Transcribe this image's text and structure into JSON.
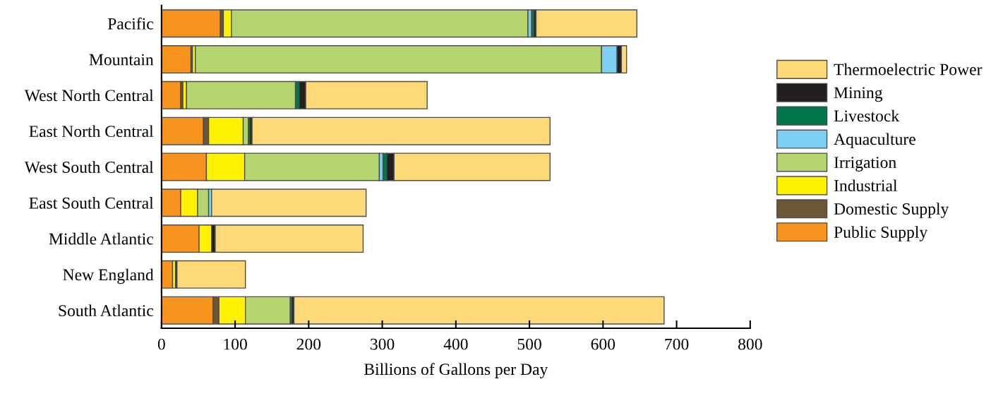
{
  "chart_data": {
    "type": "bar",
    "orientation": "horizontal",
    "stacked": true,
    "xlabel": "Billions of Gallons per Day",
    "categories": [
      "Pacific",
      "Mountain",
      "West North Central",
      "East North Central",
      "West South Central",
      "East South Central",
      "Middle Atlantic",
      "New England",
      "South Atlantic"
    ],
    "series": [
      {
        "name": "Public Supply",
        "color": "#f7941d",
        "values": [
          80,
          40,
          26,
          57,
          61,
          26,
          51,
          15,
          70
        ]
      },
      {
        "name": "Domestic Supply",
        "color": "#6b5636",
        "values": [
          4,
          2,
          3,
          7,
          null,
          null,
          null,
          null,
          8
        ]
      },
      {
        "name": "Industrial",
        "color": "#fff200",
        "values": [
          11,
          4,
          5,
          47,
          52,
          23,
          17,
          4,
          36
        ]
      },
      {
        "name": "Irrigation",
        "color": "#b5d56f",
        "values": [
          403,
          552,
          148,
          7,
          183,
          15,
          0,
          0,
          61
        ]
      },
      {
        "name": "Aquaculture",
        "color": "#7dd0f3",
        "values": [
          5,
          21,
          0,
          0,
          5,
          4,
          0,
          0,
          0
        ]
      },
      {
        "name": "Livestock",
        "color": "#00764a",
        "values": [
          3,
          null,
          5,
          2,
          5,
          0,
          0,
          0,
          2
        ]
      },
      {
        "name": "Mining",
        "color": "#231f20",
        "values": [
          3,
          6,
          9,
          3,
          10,
          0,
          5,
          2,
          3
        ]
      },
      {
        "name": "Thermoelectric Power",
        "color": "#fed978",
        "values": [
          137,
          7,
          165,
          405,
          212,
          210,
          201,
          93,
          503
        ]
      }
    ],
    "xlim": [
      0,
      800
    ],
    "xticks": [
      0,
      100,
      200,
      300,
      400,
      500,
      600,
      700,
      800
    ],
    "grid": false,
    "legend": "right"
  }
}
